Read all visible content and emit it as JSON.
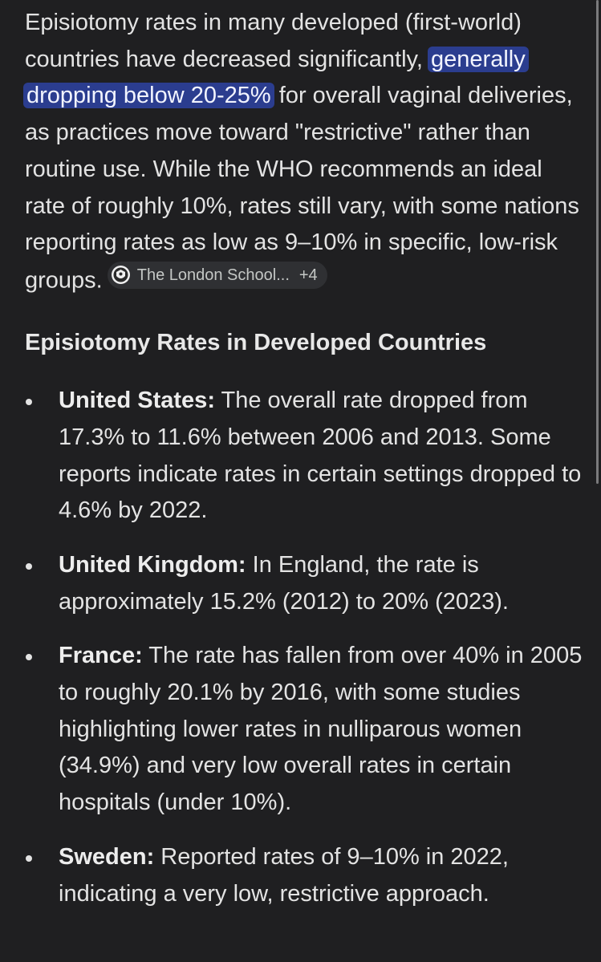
{
  "intro": {
    "text_before": "Episiotomy rates in many developed (first-world) countries have decreased significantly, ",
    "highlighted": "generally dropping below 20-25%",
    "text_after": " for overall vaginal deliveries, as practices move toward \"restrictive\" rather than routine use. While the WHO recommends an ideal rate of roughly 10%, rates still vary, with some nations reporting rates as low as 9–10% in specific, low-risk groups.",
    "source_chip": {
      "label": "The London School...",
      "count": "+4",
      "icon": "lse-crest-icon"
    }
  },
  "section": {
    "title": "Episiotomy Rates in Developed Countries"
  },
  "bullets": [
    {
      "label": "United States:",
      "text": " The overall rate dropped from 17.3% to 11.6% between 2006 and 2013. Some reports indicate rates in certain settings dropped to 4.6% by 2022."
    },
    {
      "label": "United Kingdom:",
      "text": " In England, the rate is approximately 15.2% (2012) to 20% (2023)."
    },
    {
      "label": "France:",
      "text": " The rate has fallen from over 40% in 2005 to roughly 20.1% by 2016, with some studies highlighting lower rates in nulliparous women (34.9%) and very low overall rates in certain hospitals (under 10%)."
    },
    {
      "label": "Sweden:",
      "text": " Reported rates of 9–10% in 2022, indicating a very low, restrictive approach."
    }
  ],
  "colors": {
    "background": "#1f1f21",
    "text": "#e3e3e3",
    "highlight": "#2b3d8f",
    "chip_background": "#2f3033"
  }
}
